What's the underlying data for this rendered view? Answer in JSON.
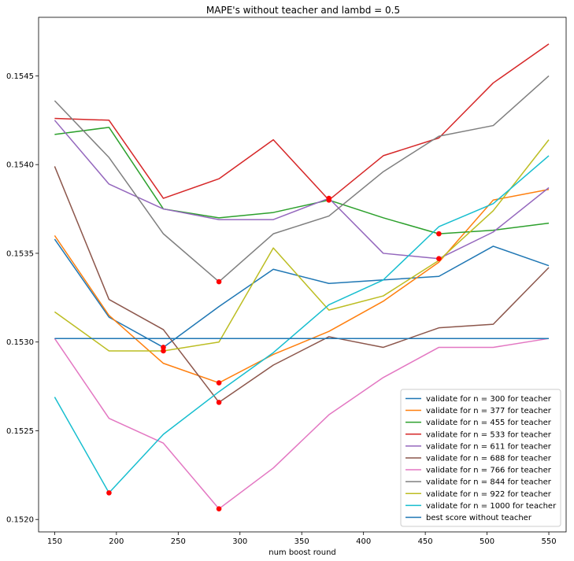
{
  "chart_data": {
    "type": "line",
    "title": "MAPE's without teacher and lambd = 0.5",
    "xlabel": "num boost round",
    "ylabel": "",
    "xlim": [
      137,
      564
    ],
    "ylim": [
      0.15193,
      0.15483
    ],
    "x": [
      150,
      194,
      238,
      283,
      327,
      372,
      416,
      461,
      505,
      550
    ],
    "xticks": [
      150,
      200,
      250,
      300,
      350,
      400,
      450,
      500,
      550
    ],
    "yticks": [
      0.152,
      0.1525,
      0.153,
      0.1535,
      0.154,
      0.1545
    ],
    "ytick_labels": [
      "0.1520",
      "0.1525",
      "0.1530",
      "0.1535",
      "0.1540",
      "0.1545"
    ],
    "legend_position": "lower-right",
    "grid": false,
    "series": [
      {
        "name": "validate for n = 300 for teacher",
        "color": "#1f77b4",
        "values": [
          0.15358,
          0.15314,
          0.15297,
          0.1532,
          0.15341,
          0.15333,
          0.15335,
          0.15337,
          0.15354,
          0.15343
        ]
      },
      {
        "name": "validate for n = 377 for teacher",
        "color": "#ff7f0e",
        "values": [
          0.1536,
          0.15315,
          0.15288,
          0.15277,
          0.15293,
          0.15306,
          0.15323,
          0.15345,
          0.1538,
          0.15386
        ]
      },
      {
        "name": "validate for n = 455 for teacher",
        "color": "#2ca02c",
        "values": [
          0.15417,
          0.15421,
          0.15375,
          0.1537,
          0.15373,
          0.1538,
          0.1537,
          0.15361,
          0.15363,
          0.15367
        ]
      },
      {
        "name": "validate for n = 533 for teacher",
        "color": "#d62728",
        "values": [
          0.15426,
          0.15425,
          0.15381,
          0.15392,
          0.15414,
          0.1538,
          0.15405,
          0.15415,
          0.15446,
          0.15468
        ]
      },
      {
        "name": "validate for n = 611 for teacher",
        "color": "#9467bd",
        "values": [
          0.15425,
          0.15389,
          0.15375,
          0.15369,
          0.15369,
          0.15381,
          0.1535,
          0.15347,
          0.15362,
          0.15387
        ]
      },
      {
        "name": "validate for n = 688 for teacher",
        "color": "#8c564b",
        "values": [
          0.15399,
          0.15324,
          0.15307,
          0.15266,
          0.15287,
          0.15303,
          0.15297,
          0.15308,
          0.1531,
          0.15342
        ]
      },
      {
        "name": "validate for n = 766 for teacher",
        "color": "#e377c2",
        "values": [
          0.15302,
          0.15257,
          0.15243,
          0.15206,
          0.15229,
          0.15259,
          0.1528,
          0.15297,
          0.15297,
          0.15302
        ]
      },
      {
        "name": "validate for n = 844 for teacher",
        "color": "#7f7f7f",
        "values": [
          0.15436,
          0.15404,
          0.15361,
          0.15334,
          0.15361,
          0.15371,
          0.15396,
          0.15416,
          0.15422,
          0.1545
        ]
      },
      {
        "name": "validate for n = 922 for teacher",
        "color": "#bcbd22",
        "values": [
          0.15317,
          0.15295,
          0.15295,
          0.153,
          0.15353,
          0.15318,
          0.15326,
          0.15346,
          0.15374,
          0.15414
        ]
      },
      {
        "name": "validate for n = 1000 for teacher",
        "color": "#17becf",
        "values": [
          0.15269,
          0.15215,
          0.15248,
          0.15272,
          0.15294,
          0.15321,
          0.15335,
          0.15365,
          0.15378,
          0.15405
        ]
      },
      {
        "name": "best score without teacher",
        "color": "#1f77b4",
        "values": [
          0.15302,
          0.15302,
          0.15302,
          0.15302,
          0.15302,
          0.15302,
          0.15302,
          0.15302,
          0.15302,
          0.15302
        ]
      }
    ],
    "highlight_points": {
      "color": "#ff0000",
      "points": [
        {
          "x": 194,
          "y": 0.15215
        },
        {
          "x": 238,
          "y": 0.15297
        },
        {
          "x": 238,
          "y": 0.15295
        },
        {
          "x": 283,
          "y": 0.15334
        },
        {
          "x": 283,
          "y": 0.15277
        },
        {
          "x": 283,
          "y": 0.15266
        },
        {
          "x": 283,
          "y": 0.15206
        },
        {
          "x": 372,
          "y": 0.1538
        },
        {
          "x": 372,
          "y": 0.15381
        },
        {
          "x": 461,
          "y": 0.15361
        },
        {
          "x": 461,
          "y": 0.15347
        }
      ]
    }
  }
}
